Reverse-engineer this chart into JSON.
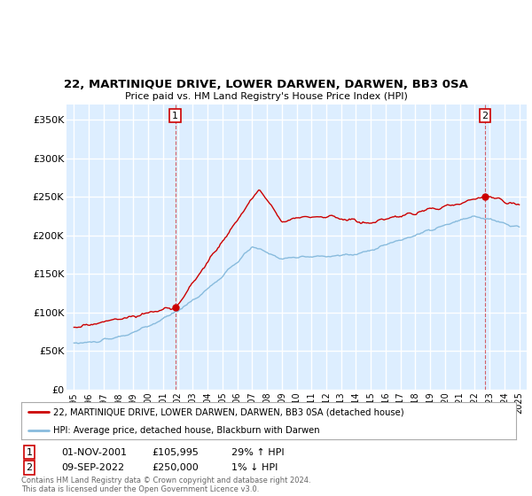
{
  "title": "22, MARTINIQUE DRIVE, LOWER DARWEN, DARWEN, BB3 0SA",
  "subtitle": "Price paid vs. HM Land Registry's House Price Index (HPI)",
  "legend_line1": "22, MARTINIQUE DRIVE, LOWER DARWEN, DARWEN, BB3 0SA (detached house)",
  "legend_line2": "HPI: Average price, detached house, Blackburn with Darwen",
  "annotation1_date": "01-NOV-2001",
  "annotation1_price": "£105,995",
  "annotation1_hpi": "29% ↑ HPI",
  "annotation2_date": "09-SEP-2022",
  "annotation2_price": "£250,000",
  "annotation2_hpi": "1% ↓ HPI",
  "footer": "Contains HM Land Registry data © Crown copyright and database right 2024.\nThis data is licensed under the Open Government Licence v3.0.",
  "red_color": "#cc0000",
  "blue_color": "#88bbdd",
  "bg_color": "#ddeeff",
  "grid_color": "#ffffff",
  "ylim": [
    0,
    370000
  ],
  "yticks": [
    0,
    50000,
    100000,
    150000,
    200000,
    250000,
    300000,
    350000
  ],
  "ytick_labels": [
    "£0",
    "£50K",
    "£100K",
    "£150K",
    "£200K",
    "£250K",
    "£300K",
    "£350K"
  ],
  "sale1_x": 2001.83,
  "sale1_y": 105995,
  "sale2_x": 2022.69,
  "sale2_y": 250000,
  "xlim_left": 1994.5,
  "xlim_right": 2025.5
}
